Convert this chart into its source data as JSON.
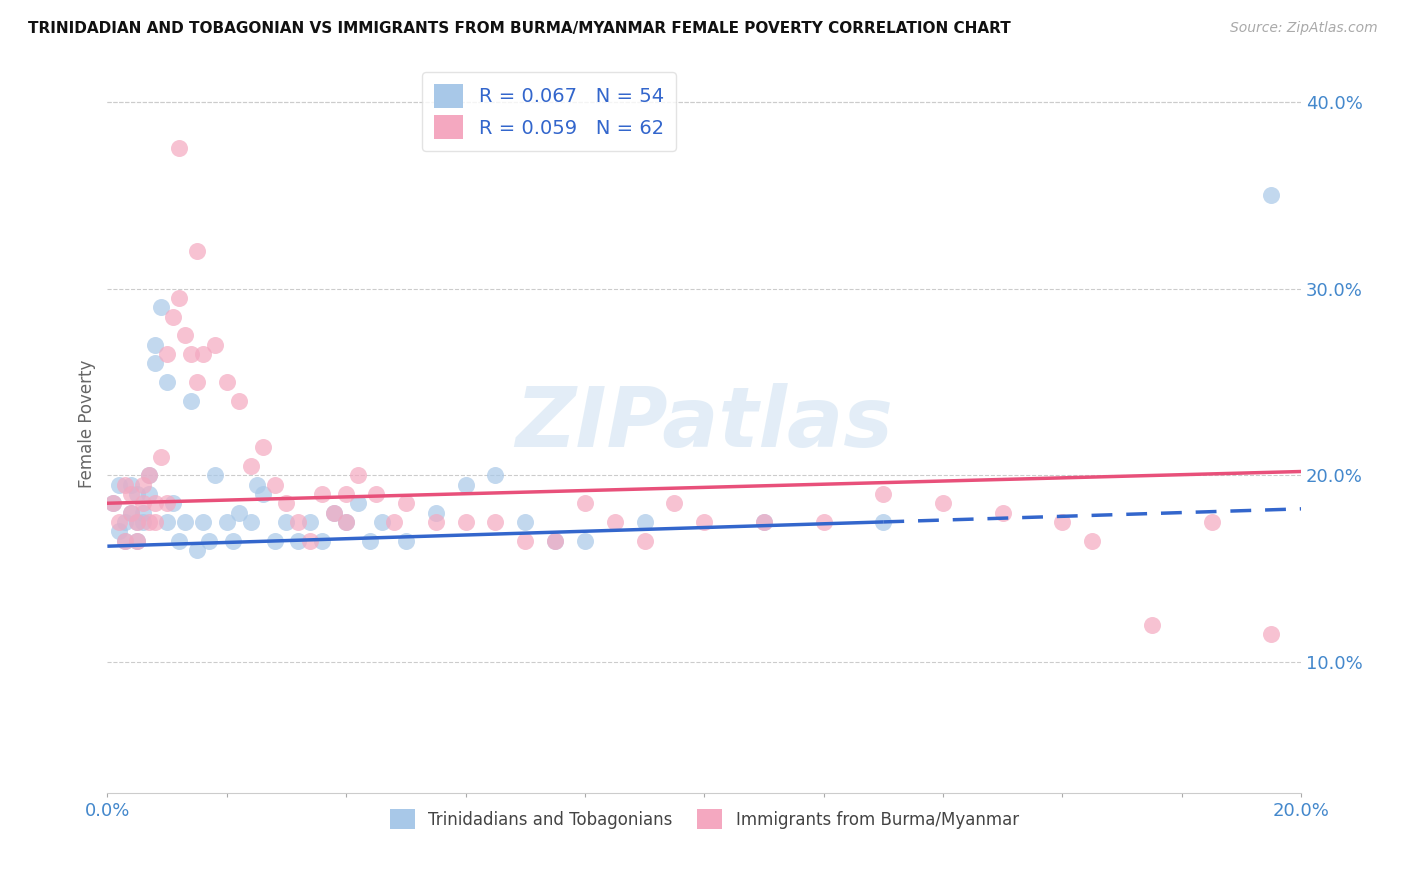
{
  "title": "TRINIDADIAN AND TOBAGONIAN VS IMMIGRANTS FROM BURMA/MYANMAR FEMALE POVERTY CORRELATION CHART",
  "source": "Source: ZipAtlas.com",
  "ylabel": "Female Poverty",
  "x_min": 0.0,
  "x_max": 0.2,
  "y_min": 0.03,
  "y_max": 0.425,
  "y_ticks": [
    0.1,
    0.2,
    0.3,
    0.4
  ],
  "y_tick_labels": [
    "10.0%",
    "20.0%",
    "30.0%",
    "40.0%"
  ],
  "x_tick_labels_show": [
    "0.0%",
    "20.0%"
  ],
  "legend_r1": "R = 0.067",
  "legend_n1": "N = 54",
  "legend_r2": "R = 0.059",
  "legend_n2": "N = 62",
  "color_blue": "#A8C8E8",
  "color_pink": "#F4A8C0",
  "color_blue_line": "#3366CC",
  "color_pink_line": "#E8507A",
  "color_title": "#111111",
  "color_source": "#aaaaaa",
  "color_axis_labels": "#4488CC",
  "color_grid": "#cccccc",
  "watermark_text": "ZIPatlas",
  "blue_line_solid_end": 0.13,
  "blue_line_x0": 0.0,
  "blue_line_y0": 0.162,
  "blue_line_x1": 0.2,
  "blue_line_y1": 0.182,
  "pink_line_x0": 0.0,
  "pink_line_y0": 0.185,
  "pink_line_x1": 0.2,
  "pink_line_y1": 0.202,
  "blue_x": [
    0.001,
    0.002,
    0.002,
    0.003,
    0.003,
    0.004,
    0.004,
    0.005,
    0.005,
    0.005,
    0.006,
    0.006,
    0.007,
    0.007,
    0.008,
    0.008,
    0.009,
    0.01,
    0.01,
    0.011,
    0.012,
    0.013,
    0.014,
    0.015,
    0.016,
    0.017,
    0.018,
    0.02,
    0.021,
    0.022,
    0.024,
    0.025,
    0.026,
    0.028,
    0.03,
    0.032,
    0.034,
    0.036,
    0.038,
    0.04,
    0.042,
    0.044,
    0.046,
    0.05,
    0.055,
    0.06,
    0.065,
    0.07,
    0.075,
    0.08,
    0.09,
    0.11,
    0.13,
    0.195
  ],
  "blue_y": [
    0.185,
    0.17,
    0.195,
    0.165,
    0.175,
    0.18,
    0.195,
    0.165,
    0.175,
    0.19,
    0.175,
    0.18,
    0.19,
    0.2,
    0.27,
    0.26,
    0.29,
    0.25,
    0.175,
    0.185,
    0.165,
    0.175,
    0.24,
    0.16,
    0.175,
    0.165,
    0.2,
    0.175,
    0.165,
    0.18,
    0.175,
    0.195,
    0.19,
    0.165,
    0.175,
    0.165,
    0.175,
    0.165,
    0.18,
    0.175,
    0.185,
    0.165,
    0.175,
    0.165,
    0.18,
    0.195,
    0.2,
    0.175,
    0.165,
    0.165,
    0.175,
    0.175,
    0.175,
    0.35
  ],
  "pink_x": [
    0.001,
    0.002,
    0.003,
    0.003,
    0.004,
    0.004,
    0.005,
    0.005,
    0.006,
    0.006,
    0.007,
    0.007,
    0.008,
    0.008,
    0.009,
    0.01,
    0.01,
    0.011,
    0.012,
    0.013,
    0.014,
    0.015,
    0.016,
    0.018,
    0.02,
    0.022,
    0.024,
    0.026,
    0.028,
    0.03,
    0.032,
    0.034,
    0.036,
    0.038,
    0.04,
    0.042,
    0.045,
    0.048,
    0.05,
    0.055,
    0.06,
    0.065,
    0.07,
    0.075,
    0.08,
    0.085,
    0.09,
    0.095,
    0.1,
    0.11,
    0.12,
    0.13,
    0.14,
    0.15,
    0.16,
    0.165,
    0.175,
    0.185,
    0.195,
    0.04,
    0.012,
    0.015
  ],
  "pink_y": [
    0.185,
    0.175,
    0.165,
    0.195,
    0.18,
    0.19,
    0.175,
    0.165,
    0.185,
    0.195,
    0.175,
    0.2,
    0.185,
    0.175,
    0.21,
    0.185,
    0.265,
    0.285,
    0.295,
    0.275,
    0.265,
    0.25,
    0.265,
    0.27,
    0.25,
    0.24,
    0.205,
    0.215,
    0.195,
    0.185,
    0.175,
    0.165,
    0.19,
    0.18,
    0.175,
    0.2,
    0.19,
    0.175,
    0.185,
    0.175,
    0.175,
    0.175,
    0.165,
    0.165,
    0.185,
    0.175,
    0.165,
    0.185,
    0.175,
    0.175,
    0.175,
    0.19,
    0.185,
    0.18,
    0.175,
    0.165,
    0.12,
    0.175,
    0.115,
    0.19,
    0.375,
    0.32
  ]
}
